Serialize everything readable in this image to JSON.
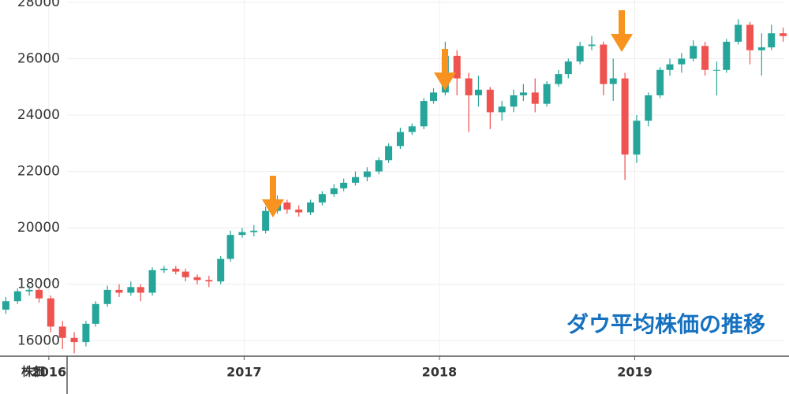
{
  "chart_data": {
    "type": "candlestick",
    "title": "ダウ平均株価の推移",
    "axis_label": "株価",
    "x": [
      2015.78,
      2015.84,
      2015.9,
      2015.95,
      2016.01,
      2016.07,
      2016.13,
      2016.19,
      2016.24,
      2016.3,
      2016.36,
      2016.42,
      2016.47,
      2016.53,
      2016.59,
      2016.65,
      2016.7,
      2016.76,
      2016.82,
      2016.88,
      2016.93,
      2016.99,
      2017.05,
      2017.11,
      2017.17,
      2017.22,
      2017.28,
      2017.34,
      2017.4,
      2017.46,
      2017.51,
      2017.57,
      2017.63,
      2017.69,
      2017.74,
      2017.8,
      2017.86,
      2017.92,
      2017.97,
      2018.03,
      2018.09,
      2018.15,
      2018.2,
      2018.26,
      2018.32,
      2018.38,
      2018.43,
      2018.49,
      2018.55,
      2018.61,
      2018.66,
      2018.72,
      2018.78,
      2018.84,
      2018.89,
      2018.95,
      2019.01,
      2019.07,
      2019.13,
      2019.18,
      2019.24,
      2019.3,
      2019.36,
      2019.42,
      2019.47,
      2019.53,
      2019.59,
      2019.65,
      2019.7,
      2019.76
    ],
    "open": [
      17100,
      17400,
      17750,
      17800,
      17500,
      16500,
      16100,
      15950,
      16600,
      17300,
      17800,
      17700,
      17900,
      17700,
      18500,
      18550,
      18450,
      18250,
      18150,
      18100,
      18900,
      19750,
      19850,
      19900,
      20600,
      20900,
      20650,
      20550,
      20900,
      21200,
      21400,
      21600,
      21800,
      22000,
      22400,
      22900,
      23400,
      23600,
      24500,
      24800,
      26100,
      25300,
      24700,
      24900,
      24100,
      24300,
      24700,
      24800,
      24400,
      25100,
      25450,
      25900,
      26450,
      26500,
      25100,
      25300,
      22600,
      23800,
      24700,
      25600,
      25800,
      26000,
      26450,
      25600,
      25600,
      26600,
      27200,
      26300,
      26400,
      26900
    ],
    "high": [
      17550,
      17850,
      17950,
      17900,
      17600,
      16700,
      16300,
      16700,
      17400,
      17950,
      18000,
      18100,
      18000,
      18600,
      18650,
      18650,
      18550,
      18350,
      18300,
      19000,
      19900,
      20000,
      20100,
      20750,
      21150,
      21000,
      20800,
      21000,
      21300,
      21550,
      21750,
      22000,
      22150,
      22500,
      23000,
      23550,
      23700,
      24600,
      24950,
      26600,
      26300,
      25500,
      25400,
      25000,
      24500,
      24900,
      25100,
      25300,
      25200,
      25600,
      26000,
      26600,
      26800,
      26600,
      26000,
      25500,
      24000,
      24800,
      25700,
      26000,
      26200,
      26650,
      26600,
      25900,
      26700,
      27400,
      27300,
      26900,
      27200,
      27100
    ],
    "low": [
      16950,
      17300,
      17600,
      17350,
      16300,
      15700,
      15550,
      15800,
      16500,
      17200,
      17550,
      17600,
      17400,
      17600,
      18400,
      18350,
      18100,
      18000,
      17900,
      18000,
      18800,
      19650,
      19700,
      19800,
      20500,
      20500,
      20400,
      20450,
      20800,
      21100,
      21300,
      21500,
      21650,
      21900,
      22300,
      22800,
      23300,
      23500,
      24400,
      24700,
      24700,
      23400,
      24300,
      23500,
      23800,
      24100,
      24500,
      24100,
      24300,
      25000,
      25300,
      25800,
      26300,
      24700,
      24500,
      21700,
      22300,
      23600,
      24600,
      25400,
      25500,
      25900,
      25400,
      24700,
      25500,
      26500,
      25800,
      25400,
      26300,
      26600
    ],
    "close": [
      17400,
      17750,
      17800,
      17500,
      16500,
      16100,
      15950,
      16600,
      17300,
      17800,
      17700,
      17900,
      17700,
      18500,
      18550,
      18450,
      18250,
      18150,
      18100,
      18900,
      19750,
      19850,
      19900,
      20600,
      20900,
      20650,
      20550,
      20900,
      21200,
      21400,
      21600,
      21800,
      22000,
      22400,
      22900,
      23400,
      23600,
      24500,
      24800,
      26100,
      25300,
      24700,
      24900,
      24100,
      24300,
      24700,
      24800,
      24400,
      25100,
      25450,
      25900,
      26450,
      26500,
      25100,
      25300,
      22600,
      23800,
      24700,
      25600,
      25800,
      26000,
      26450,
      25600,
      25600,
      26600,
      27200,
      26300,
      26400,
      26900,
      26800
    ],
    "up_color": "#26a69a",
    "down_color": "#ef5350",
    "title_color": "#1571c0",
    "xlim": [
      2015.75,
      2019.79
    ],
    "xticks": [
      2016,
      2017,
      2018,
      2019
    ],
    "ylim": [
      15450,
      28080
    ],
    "yticks": [
      16000,
      18000,
      20000,
      22000,
      24000,
      26000,
      28000
    ],
    "grid": true
  }
}
